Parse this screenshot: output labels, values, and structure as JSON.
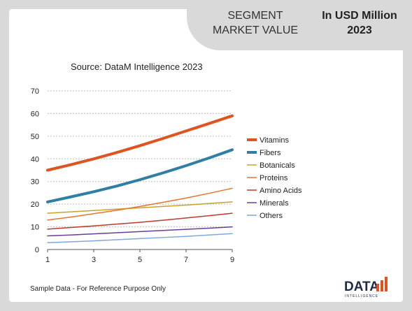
{
  "header": {
    "segment_title_line1": "SEGMENT",
    "segment_title_line2": "MARKET VALUE",
    "unit_line1": "In USD Million",
    "unit_line2": "2023"
  },
  "source": "Source: DataM Intelligence 2023",
  "footnote": "Sample Data - For Reference Purpose Only",
  "logo": {
    "text": "DATA",
    "subtext": "INTELLIGENCE",
    "accent": "#e0531f"
  },
  "chart_data": {
    "type": "line",
    "x": [
      1,
      2,
      3,
      4,
      5,
      6,
      7,
      8,
      9
    ],
    "xticks": [
      1,
      3,
      5,
      7,
      9
    ],
    "yticks": [
      0,
      10,
      20,
      30,
      40,
      50,
      60,
      70
    ],
    "ylim": [
      0,
      70
    ],
    "xlim": [
      1,
      9
    ],
    "grid": "horizontal-dotted",
    "legend_position": "right",
    "series": [
      {
        "name": "Vitamins",
        "color": "#e0531f",
        "width": 4,
        "values": [
          35,
          37.4,
          40,
          42.8,
          45.8,
          49,
          52.3,
          55.6,
          59
        ]
      },
      {
        "name": "Fibers",
        "color": "#2e7fa3",
        "width": 4,
        "values": [
          21,
          23.2,
          25.5,
          28,
          30.8,
          33.8,
          37,
          40.4,
          44
        ]
      },
      {
        "name": "Botanicals",
        "color": "#c9a227",
        "width": 1.5,
        "values": [
          16,
          16.6,
          17.2,
          17.8,
          18.4,
          19,
          19.6,
          20.3,
          21
        ]
      },
      {
        "name": "Proteins",
        "color": "#e8742c",
        "width": 1.5,
        "values": [
          13,
          14.3,
          15.8,
          17.3,
          19,
          20.8,
          22.7,
          24.8,
          27
        ]
      },
      {
        "name": "Amino Acids",
        "color": "#c0392b",
        "width": 1.5,
        "values": [
          9,
          9.7,
          10.4,
          11.2,
          12,
          12.9,
          13.9,
          14.9,
          16
        ]
      },
      {
        "name": "Minerals",
        "color": "#6a3d9a",
        "width": 1.5,
        "values": [
          6,
          6.4,
          6.9,
          7.4,
          7.9,
          8.4,
          8.9,
          9.4,
          10
        ]
      },
      {
        "name": "Others",
        "color": "#7fa7d9",
        "width": 1.5,
        "values": [
          3,
          3.4,
          3.8,
          4.3,
          4.8,
          5.3,
          5.8,
          6.4,
          7
        ]
      }
    ]
  }
}
